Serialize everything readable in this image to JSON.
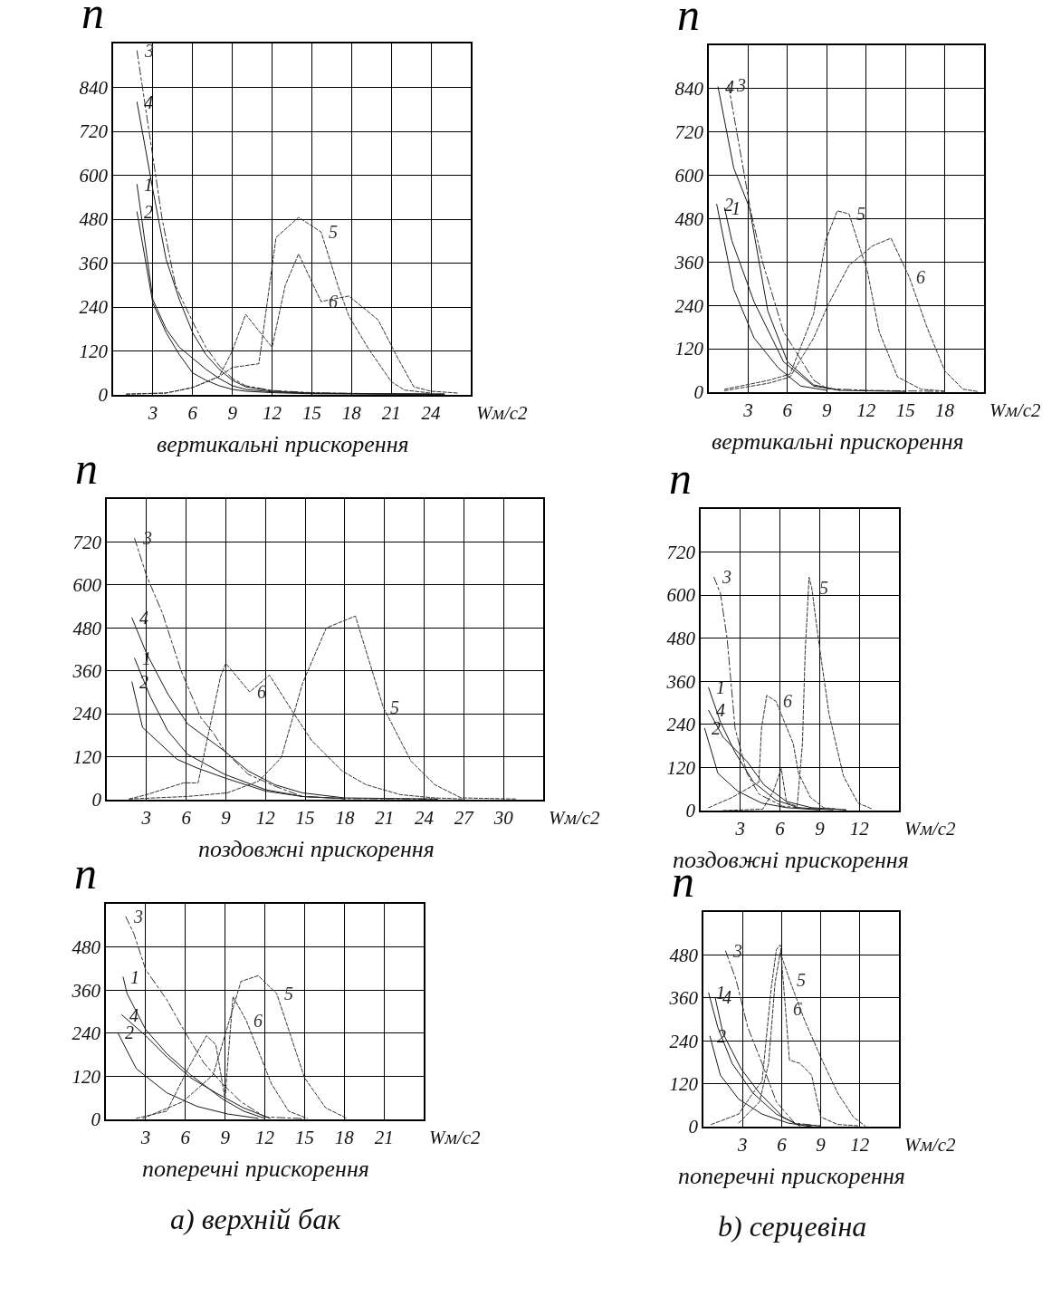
{
  "chart_data": [
    {
      "type": "line",
      "title": "вертикальні прискорення",
      "xlabel": "Wм/с2",
      "ylabel": "n",
      "xlim": [
        0,
        27
      ],
      "xticks": [
        3,
        6,
        9,
        12,
        15,
        18,
        21,
        24
      ],
      "ylim": [
        0,
        960
      ],
      "yticks": [
        0,
        120,
        240,
        360,
        480,
        600,
        720,
        840
      ],
      "grid": true,
      "series": [
        {
          "name": "1",
          "color": "#1a1a1a",
          "line_style": "solid",
          "x": [
            1.8,
            3,
            4,
            5,
            6,
            7,
            8,
            9,
            10,
            12,
            15,
            25
          ],
          "values": [
            575,
            260,
            180,
            130,
            100,
            70,
            45,
            25,
            15,
            8,
            4,
            2
          ]
        },
        {
          "name": "2",
          "color": "#1a1a1a",
          "line_style": "solid",
          "x": [
            1.8,
            3,
            4,
            5,
            6,
            7,
            8,
            9,
            10,
            12,
            15,
            25
          ],
          "values": [
            500,
            250,
            170,
            110,
            60,
            40,
            25,
            15,
            10,
            6,
            3,
            1
          ]
        },
        {
          "name": "3",
          "color": "#333333",
          "line_style": "dashdot",
          "x": [
            1.8,
            3,
            3.7,
            4.7,
            5.2,
            6,
            7,
            8,
            9,
            10,
            12,
            15,
            20,
            25
          ],
          "values": [
            940,
            650,
            480,
            300,
            260,
            200,
            130,
            80,
            45,
            25,
            12,
            6,
            3,
            2
          ]
        },
        {
          "name": "4",
          "color": "#1a1a1a",
          "line_style": "solid",
          "x": [
            1.8,
            3,
            4,
            5,
            6,
            7,
            8,
            9,
            10,
            12,
            15,
            20,
            25
          ],
          "values": [
            800,
            560,
            370,
            260,
            170,
            110,
            70,
            40,
            22,
            10,
            5,
            3,
            2
          ]
        },
        {
          "name": "5",
          "color": "#333333",
          "line_style": "dashed",
          "x": [
            1,
            4,
            6,
            8,
            9,
            11,
            12.3,
            14,
            15.7,
            17,
            17.8,
            19.3,
            21,
            22,
            24
          ],
          "values": [
            2,
            5,
            20,
            50,
            75,
            85,
            430,
            485,
            445,
            295,
            215,
            125,
            36,
            13,
            5
          ]
        },
        {
          "name": "6",
          "color": "#333333",
          "line_style": "dashed",
          "x": [
            1,
            4,
            6,
            8,
            9,
            10,
            12,
            13,
            14,
            15.7,
            17.8,
            20,
            21.5,
            22.7,
            24,
            26
          ],
          "values": [
            2,
            5,
            20,
            50,
            120,
            220,
            130,
            300,
            385,
            255,
            270,
            205,
            100,
            22,
            10,
            5
          ]
        }
      ]
    },
    {
      "type": "line",
      "title": "вертикальні прискорення",
      "xlabel": "Wм/с2",
      "ylabel": "n",
      "xlim": [
        0,
        21
      ],
      "xticks": [
        3,
        6,
        9,
        12,
        15,
        18
      ],
      "ylim": [
        0,
        960
      ],
      "yticks": [
        0,
        120,
        240,
        360,
        480,
        600,
        720,
        840
      ],
      "grid": true,
      "series": [
        {
          "name": "1",
          "color": "#1a1a1a",
          "line_style": "solid",
          "x": [
            1.2,
            1.75,
            3.45,
            5.7,
            8,
            10
          ],
          "values": [
            510,
            420,
            250,
            84,
            17,
            5
          ]
        },
        {
          "name": "2",
          "color": "#1a1a1a",
          "line_style": "solid",
          "x": [
            0.6,
            1.9,
            3.45,
            5.3,
            7,
            9
          ],
          "values": [
            520,
            285,
            150,
            67,
            17,
            5
          ]
        },
        {
          "name": "3",
          "color": "#333333",
          "line_style": "dashdot",
          "x": [
            1.5,
            3.2,
            4.1,
            5.7,
            8,
            9,
            12,
            18
          ],
          "values": [
            850,
            500,
            360,
            167,
            33,
            10,
            5,
            2
          ]
        },
        {
          "name": "4",
          "color": "#1a1a1a",
          "line_style": "solid",
          "x": [
            0.7,
            1.9,
            3.1,
            4.5,
            6,
            8,
            10,
            15
          ],
          "values": [
            845,
            620,
            510,
            225,
            84,
            20,
            5,
            2
          ]
        },
        {
          "name": "5",
          "color": "#333333",
          "line_style": "dashed",
          "x": [
            1.2,
            4.6,
            6.2,
            8,
            8.9,
            9.8,
            10.7,
            12.1,
            13,
            14.4,
            16.2,
            18
          ],
          "values": [
            8,
            33,
            50,
            217,
            418,
            502,
            493,
            334,
            167,
            42,
            8,
            3
          ]
        },
        {
          "name": "6",
          "color": "#333333",
          "line_style": "dashed",
          "x": [
            1.2,
            4.6,
            6.2,
            8,
            9.1,
            10.7,
            12.5,
            13.9,
            15.3,
            16.6,
            18,
            19.4,
            20.5
          ],
          "values": [
            4,
            25,
            42,
            150,
            242,
            351,
            405,
            426,
            318,
            184,
            59,
            8,
            2
          ]
        }
      ]
    },
    {
      "type": "line",
      "title": "поздовжні прискорення",
      "xlabel": "Wм/с2",
      "ylabel": "n",
      "xlim": [
        0,
        33
      ],
      "xticks": [
        3,
        6,
        9,
        12,
        15,
        18,
        21,
        24,
        27,
        30
      ],
      "ylim": [
        0,
        840
      ],
      "yticks": [
        0,
        120,
        240,
        360,
        480,
        600,
        720
      ],
      "grid": true,
      "series": [
        {
          "name": "1",
          "color": "#1a1a1a",
          "line_style": "solid",
          "x": [
            2.1,
            3.3,
            4.6,
            6.1,
            8.9,
            12,
            14.8,
            18
          ],
          "values": [
            395,
            287,
            193,
            127,
            71,
            28,
            9,
            3
          ]
        },
        {
          "name": "2",
          "color": "#1a1a1a",
          "line_style": "solid",
          "x": [
            1.9,
            2.7,
            5.3,
            6.8,
            8.9,
            12,
            14.8,
            18
          ],
          "values": [
            329,
            202,
            113,
            89,
            61,
            24,
            9,
            3
          ]
        },
        {
          "name": "3",
          "color": "#333333",
          "line_style": "dashdot",
          "x": [
            2.1,
            3,
            4.2,
            5.6,
            7.1,
            8.1,
            8.9,
            10.7,
            12.7,
            14.8,
            18,
            25
          ],
          "values": [
            730,
            626,
            522,
            362,
            230,
            184,
            136,
            71,
            38,
            9,
            3,
            2
          ]
        },
        {
          "name": "4",
          "color": "#1a1a1a",
          "line_style": "solid",
          "x": [
            1.9,
            3,
            4.6,
            6.1,
            8.9,
            10.7,
            12.7,
            14.8,
            18,
            25
          ],
          "values": [
            508,
            409,
            296,
            212,
            136,
            80,
            42,
            19,
            5,
            2
          ]
        },
        {
          "name": "5",
          "color": "#333333",
          "line_style": "dashed",
          "x": [
            1.7,
            6.1,
            9.1,
            11.5,
            13.2,
            14.8,
            16.6,
            18.8,
            20.9,
            23,
            24.8,
            26.8,
            31
          ],
          "values": [
            2,
            9,
            19,
            52,
            118,
            325,
            480,
            513,
            259,
            108,
            42,
            5,
            2
          ]
        },
        {
          "name": "6",
          "color": "#333333",
          "line_style": "dashed",
          "x": [
            1.7,
            3,
            5.8,
            6.9,
            8.6,
            9,
            10.8,
            12.3,
            14,
            15.5,
            17.8,
            19.6,
            22.2,
            24.8,
            27
          ],
          "values": [
            2,
            14,
            47,
            47,
            344,
            381,
            301,
            348,
            249,
            165,
            80,
            42,
            14,
            5,
            2
          ]
        }
      ]
    },
    {
      "type": "line",
      "title": "поздовжні прискорення",
      "xlabel": "Wм/с2",
      "ylabel": "n",
      "xlim": [
        0,
        15
      ],
      "xticks": [
        3,
        6,
        9,
        12
      ],
      "ylim": [
        0,
        840
      ],
      "yticks": [
        0,
        120,
        240,
        360,
        480,
        600,
        720
      ],
      "grid": true,
      "series": [
        {
          "name": "1",
          "color": "#1a1a1a",
          "line_style": "solid",
          "x": [
            0.6,
            1.5,
            2.6,
            4,
            5.7,
            7.4,
            10
          ],
          "values": [
            342,
            246,
            162,
            79,
            29,
            8,
            2
          ]
        },
        {
          "name": "2",
          "color": "#1a1a1a",
          "line_style": "solid",
          "x": [
            0.3,
            1.3,
            2.8,
            4.6,
            6.5,
            9
          ],
          "values": [
            229,
            104,
            54,
            21,
            8,
            2
          ]
        },
        {
          "name": "3",
          "color": "#333333",
          "line_style": "dashdot",
          "x": [
            1,
            1.5,
            2,
            2.6,
            3.5,
            4.4,
            6.2,
            9
          ],
          "values": [
            650,
            604,
            479,
            229,
            104,
            46,
            12,
            3
          ]
        },
        {
          "name": "4",
          "color": "#1a1a1a",
          "line_style": "solid",
          "x": [
            0.6,
            1.7,
            3.5,
            4.8,
            6.5,
            8.4,
            11
          ],
          "values": [
            279,
            204,
            137,
            71,
            25,
            8,
            2
          ]
        },
        {
          "name": "5",
          "color": "#333333",
          "line_style": "dashed",
          "x": [
            1.7,
            4.7,
            5.5,
            6.1,
            6.5,
            7.3,
            7.7,
            7.9,
            8.2,
            8.4,
            8.9,
            9.7,
            10.8,
            11.9,
            13
          ],
          "values": [
            0,
            4,
            54,
            117,
            21,
            12,
            187,
            437,
            650,
            621,
            479,
            271,
            96,
            21,
            4
          ]
        },
        {
          "name": "6",
          "color": "#333333",
          "line_style": "dashed",
          "x": [
            0.6,
            2.4,
            4.4,
            4.6,
            5,
            5.7,
            7,
            7.4,
            8.3,
            9.3,
            11
          ],
          "values": [
            8,
            37,
            79,
            229,
            321,
            304,
            187,
            104,
            37,
            8,
            2
          ]
        }
      ]
    },
    {
      "type": "line",
      "title": "поперечні прискорення",
      "xlabel": "Wм/с2",
      "ylabel": "n",
      "xlim": [
        0,
        24
      ],
      "xticks": [
        3,
        6,
        9,
        12,
        15,
        18,
        21
      ],
      "ylim": [
        0,
        600
      ],
      "yticks": [
        0,
        120,
        240,
        360,
        480
      ],
      "grid": true,
      "annotations": [
        "a) верхній бак"
      ],
      "series": [
        {
          "name": "1",
          "color": "#1a1a1a",
          "line_style": "solid",
          "x": [
            1.3,
            1.6,
            3,
            4.6,
            6.4,
            8.8,
            10.4,
            12
          ],
          "values": [
            396,
            350,
            250,
            183,
            124,
            57,
            23,
            3
          ]
        },
        {
          "name": "2",
          "color": "#1a1a1a",
          "line_style": "solid",
          "x": [
            0.9,
            2.3,
            4.6,
            6.9,
            9.2,
            11.5
          ],
          "values": [
            241,
            141,
            74,
            36,
            15,
            3
          ]
        },
        {
          "name": "3",
          "color": "#333333",
          "line_style": "dashdot",
          "x": [
            1.5,
            2.1,
            3,
            4.6,
            6,
            7.4,
            8.8,
            10.2,
            12,
            15
          ],
          "values": [
            564,
            518,
            417,
            333,
            241,
            157,
            99,
            49,
            7,
            2
          ]
        },
        {
          "name": "4",
          "color": "#1a1a1a",
          "line_style": "solid",
          "x": [
            1.2,
            3,
            4.6,
            6.4,
            8.3,
            10.4,
            12.4
          ],
          "values": [
            291,
            233,
            174,
            116,
            74,
            32,
            3
          ]
        },
        {
          "name": "5",
          "color": "#333333",
          "line_style": "dashed",
          "x": [
            2.8,
            5.8,
            8.1,
            10.2,
            11.5,
            12.9,
            13.8,
            15,
            16.6,
            18.2
          ],
          "values": [
            3,
            49,
            124,
            384,
            400,
            350,
            250,
            116,
            32,
            3
          ]
        },
        {
          "name": "6",
          "color": "#333333",
          "line_style": "dashed",
          "x": [
            2.3,
            4.6,
            6.2,
            7.6,
            8.3,
            9,
            9.2,
            9.6,
            10.6,
            12.5,
            13.8,
            15.2
          ],
          "values": [
            3,
            23,
            141,
            233,
            208,
            57,
            157,
            342,
            275,
            99,
            23,
            3
          ]
        }
      ]
    },
    {
      "type": "line",
      "title": "поперечні прискорення",
      "xlabel": "Wм/с2",
      "ylabel": "n",
      "xlim": [
        0,
        15
      ],
      "xticks": [
        3,
        6,
        9,
        12
      ],
      "ylim": [
        0,
        600
      ],
      "yticks": [
        0,
        120,
        240,
        360,
        480
      ],
      "grid": true,
      "annotations": [
        "b) серцевіна"
      ],
      "series": [
        {
          "name": "1",
          "color": "#1a1a1a",
          "line_style": "solid",
          "x": [
            0.4,
            1.1,
            2.2,
            3.8,
            5.6,
            7.2,
            9
          ],
          "values": [
            374,
            278,
            177,
            94,
            35,
            6,
            2
          ]
        },
        {
          "name": "2",
          "color": "#1a1a1a",
          "line_style": "solid",
          "x": [
            0.5,
            1.3,
            2.7,
            4.5,
            6.5,
            8.3
          ],
          "values": [
            253,
            144,
            77,
            35,
            10,
            0
          ]
        },
        {
          "name": "3",
          "color": "#333333",
          "line_style": "dashdot",
          "x": [
            1.7,
            2.5,
            3.4,
            4.5,
            5.6,
            7,
            9
          ],
          "values": [
            491,
            411,
            278,
            177,
            69,
            10,
            2
          ]
        },
        {
          "name": "4",
          "color": "#1a1a1a",
          "line_style": "solid",
          "x": [
            0.9,
            1.5,
            2.9,
            4.3,
            6.1,
            7.4
          ],
          "values": [
            361,
            261,
            161,
            94,
            27,
            2
          ]
        },
        {
          "name": "5",
          "color": "#333333",
          "line_style": "dashed",
          "x": [
            2.7,
            4.3,
            5,
            5.5,
            5.9,
            6.6,
            7.8,
            9,
            10.3,
            11.5,
            12.4
          ],
          "values": [
            10,
            69,
            177,
            403,
            487,
            411,
            294,
            194,
            94,
            27,
            2
          ]
        },
        {
          "name": "6",
          "color": "#333333",
          "line_style": "dashed",
          "x": [
            0.6,
            2.7,
            3.8,
            4.5,
            5.2,
            5.6,
            5.9,
            6.3,
            6.6,
            7.4,
            8.3,
            9,
            10.3,
            12
          ],
          "values": [
            6,
            35,
            94,
            127,
            386,
            495,
            508,
            328,
            186,
            177,
            144,
            27,
            6,
            2
          ]
        }
      ]
    }
  ]
}
